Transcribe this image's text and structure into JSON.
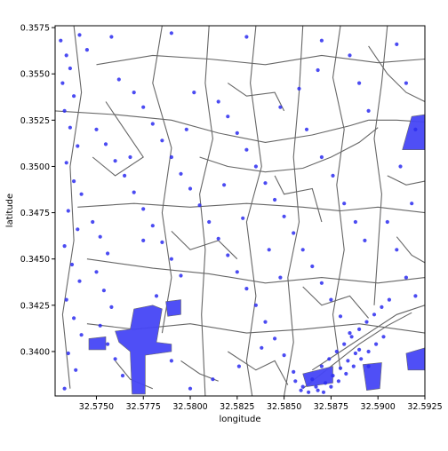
{
  "chart_data": {
    "type": "scatter",
    "xlabel": "longitude",
    "ylabel": "latitude",
    "xlim": [
      32.5728,
      32.5925
    ],
    "ylim": [
      0.3376,
      0.3576
    ],
    "x_ticks": [
      32.575,
      32.5775,
      32.58,
      32.5825,
      32.585,
      32.5875,
      32.59,
      32.5925
    ],
    "x_tick_labels": [
      "32.5750",
      "32.5775",
      "32.5800",
      "32.5825",
      "32.5850",
      "32.5875",
      "32.5900",
      "32.5925"
    ],
    "y_ticks": [
      0.34,
      0.3425,
      0.345,
      0.3475,
      0.35,
      0.3525,
      0.355,
      0.3575
    ],
    "y_tick_labels": [
      "0.3400",
      "0.3425",
      "0.3450",
      "0.3475",
      "0.3500",
      "0.3525",
      "0.3550",
      "0.3575"
    ],
    "grid": false,
    "colors": {
      "points": "#2b2bf0",
      "water": "#4646f5",
      "roads": "#666666",
      "frame": "#000000"
    },
    "layers": [
      {
        "role": "roads",
        "geometry": "line",
        "color": "#666666"
      },
      {
        "role": "points",
        "geometry": "scatter",
        "color": "#2b2bf0"
      },
      {
        "role": "water",
        "geometry": "polygon",
        "color": "#4646f5"
      }
    ],
    "roads": [
      [
        [
          32.5728,
          0.353
        ],
        [
          32.576,
          0.3528
        ],
        [
          32.579,
          0.3525
        ],
        [
          32.5815,
          0.3518
        ],
        [
          32.584,
          0.3513
        ],
        [
          32.5865,
          0.3517
        ],
        [
          32.5885,
          0.3522
        ],
        [
          32.5895,
          0.3525
        ]
      ],
      [
        [
          32.5895,
          0.3525
        ],
        [
          32.591,
          0.3525
        ],
        [
          32.5925,
          0.3524
        ]
      ],
      [
        [
          32.5805,
          0.3505
        ],
        [
          32.582,
          0.35
        ],
        [
          32.584,
          0.3497
        ],
        [
          32.586,
          0.3499
        ],
        [
          32.5875,
          0.3505
        ],
        [
          32.589,
          0.3513
        ],
        [
          32.59,
          0.3521
        ]
      ],
      [
        [
          32.5738,
          0.3576
        ],
        [
          32.5742,
          0.354
        ],
        [
          32.5736,
          0.35
        ],
        [
          32.5738,
          0.346
        ],
        [
          32.5732,
          0.342
        ],
        [
          32.5736,
          0.338
        ]
      ],
      [
        [
          32.574,
          0.3478
        ],
        [
          32.577,
          0.348
        ],
        [
          32.58,
          0.3478
        ],
        [
          32.583,
          0.348
        ],
        [
          32.586,
          0.3478
        ],
        [
          32.588,
          0.3476
        ],
        [
          32.59,
          0.3478
        ],
        [
          32.5925,
          0.3475
        ]
      ],
      [
        [
          32.581,
          0.3576
        ],
        [
          32.5808,
          0.3545
        ],
        [
          32.5812,
          0.3515
        ],
        [
          32.5805,
          0.3485
        ],
        [
          32.5808,
          0.3455
        ],
        [
          32.5806,
          0.342
        ],
        [
          32.5808,
          0.3376
        ]
      ],
      [
        [
          32.586,
          0.3576
        ],
        [
          32.5858,
          0.354
        ],
        [
          32.5855,
          0.3505
        ],
        [
          32.5858,
          0.347
        ],
        [
          32.5852,
          0.344
        ],
        [
          32.5855,
          0.3405
        ],
        [
          32.585,
          0.3376
        ]
      ],
      [
        [
          32.5905,
          0.3576
        ],
        [
          32.5902,
          0.3545
        ],
        [
          32.5898,
          0.3515
        ],
        [
          32.5902,
          0.3485
        ],
        [
          32.59,
          0.3455
        ],
        [
          32.5898,
          0.3425
        ]
      ],
      [
        [
          32.5745,
          0.345
        ],
        [
          32.578,
          0.3445
        ],
        [
          32.581,
          0.3442
        ],
        [
          32.584,
          0.3437
        ],
        [
          32.587,
          0.344
        ],
        [
          32.59,
          0.3437
        ],
        [
          32.5925,
          0.344
        ]
      ],
      [
        [
          32.575,
          0.3555
        ],
        [
          32.578,
          0.356
        ],
        [
          32.581,
          0.3558
        ],
        [
          32.584,
          0.3555
        ],
        [
          32.587,
          0.356
        ],
        [
          32.59,
          0.3556
        ],
        [
          32.5925,
          0.3558
        ]
      ],
      [
        [
          32.5785,
          0.3576
        ],
        [
          32.578,
          0.3545
        ],
        [
          32.579,
          0.351
        ],
        [
          32.5785,
          0.3475
        ],
        [
          32.579,
          0.344
        ],
        [
          32.5785,
          0.341
        ]
      ],
      [
        [
          32.5835,
          0.3576
        ],
        [
          32.5832,
          0.3545
        ],
        [
          32.5838,
          0.35
        ],
        [
          32.583,
          0.347
        ],
        [
          32.5835,
          0.343
        ],
        [
          32.583,
          0.3395
        ],
        [
          32.5833,
          0.3376
        ]
      ],
      [
        [
          32.588,
          0.3576
        ],
        [
          32.5876,
          0.3548
        ],
        [
          32.5882,
          0.352
        ],
        [
          32.5878,
          0.349
        ],
        [
          32.5882,
          0.3455
        ],
        [
          32.5876,
          0.342
        ],
        [
          32.588,
          0.339
        ]
      ],
      [
        [
          32.5745,
          0.3415
        ],
        [
          32.577,
          0.3412
        ],
        [
          32.58,
          0.3415
        ],
        [
          32.583,
          0.341
        ],
        [
          32.586,
          0.3412
        ],
        [
          32.589,
          0.3415
        ],
        [
          32.5925,
          0.341
        ]
      ],
      [
        [
          32.5755,
          0.3535
        ],
        [
          32.5765,
          0.352
        ],
        [
          32.5775,
          0.3505
        ],
        [
          32.576,
          0.3495
        ],
        [
          32.5748,
          0.3505
        ]
      ],
      [
        [
          32.582,
          0.3545
        ],
        [
          32.583,
          0.3538
        ],
        [
          32.5845,
          0.354
        ],
        [
          32.585,
          0.353
        ]
      ],
      [
        [
          32.5845,
          0.3495
        ],
        [
          32.585,
          0.3485
        ],
        [
          32.5865,
          0.3488
        ],
        [
          32.587,
          0.347
        ]
      ],
      [
        [
          32.579,
          0.3465
        ],
        [
          32.58,
          0.3455
        ],
        [
          32.5815,
          0.346
        ],
        [
          32.5825,
          0.345
        ]
      ],
      [
        [
          32.586,
          0.3435
        ],
        [
          32.587,
          0.3425
        ],
        [
          32.5885,
          0.343
        ],
        [
          32.5895,
          0.3418
        ]
      ],
      [
        [
          32.582,
          0.34
        ],
        [
          32.5835,
          0.339
        ],
        [
          32.5845,
          0.3395
        ],
        [
          32.5852,
          0.3382
        ]
      ],
      [
        [
          32.5865,
          0.339
        ],
        [
          32.588,
          0.34
        ],
        [
          32.5895,
          0.341
        ],
        [
          32.591,
          0.342
        ],
        [
          32.5925,
          0.3425
        ]
      ],
      [
        [
          32.586,
          0.338
        ],
        [
          32.5875,
          0.3392
        ],
        [
          32.589,
          0.3404
        ],
        [
          32.5905,
          0.3414
        ],
        [
          32.5918,
          0.3421
        ]
      ],
      [
        [
          32.5895,
          0.3565
        ],
        [
          32.5905,
          0.355
        ],
        [
          32.5915,
          0.354
        ],
        [
          32.5925,
          0.3535
        ]
      ],
      [
        [
          32.5905,
          0.3495
        ],
        [
          32.5915,
          0.349
        ],
        [
          32.5925,
          0.3492
        ]
      ],
      [
        [
          32.591,
          0.3462
        ],
        [
          32.5918,
          0.3452
        ],
        [
          32.5925,
          0.3448
        ]
      ],
      [
        [
          32.576,
          0.3395
        ],
        [
          32.5768,
          0.3385
        ],
        [
          32.578,
          0.338
        ]
      ],
      [
        [
          32.5795,
          0.3395
        ],
        [
          32.5805,
          0.3388
        ],
        [
          32.5815,
          0.3384
        ]
      ]
    ],
    "water_polygons": [
      [
        [
          32.577,
          0.3423
        ],
        [
          32.578,
          0.3425
        ],
        [
          32.5785,
          0.3423
        ],
        [
          32.5782,
          0.3405
        ],
        [
          32.579,
          0.3404
        ],
        [
          32.579,
          0.34
        ],
        [
          32.5776,
          0.3398
        ],
        [
          32.5776,
          0.3377
        ],
        [
          32.5769,
          0.3377
        ],
        [
          32.5768,
          0.34
        ],
        [
          32.5762,
          0.3405
        ],
        [
          32.576,
          0.3411
        ],
        [
          32.5768,
          0.3412
        ]
      ],
      [
        [
          32.5787,
          0.3427
        ],
        [
          32.5795,
          0.3428
        ],
        [
          32.5795,
          0.342
        ],
        [
          32.5788,
          0.3419
        ]
      ],
      [
        [
          32.5746,
          0.3407
        ],
        [
          32.5755,
          0.3408
        ],
        [
          32.5755,
          0.3401
        ],
        [
          32.5746,
          0.3401
        ]
      ],
      [
        [
          32.5918,
          0.3527
        ],
        [
          32.5925,
          0.3528
        ],
        [
          32.5925,
          0.3509
        ],
        [
          32.5913,
          0.3509
        ]
      ],
      [
        [
          32.5915,
          0.3399
        ],
        [
          32.5925,
          0.3402
        ],
        [
          32.5925,
          0.339
        ],
        [
          32.5916,
          0.339
        ]
      ],
      [
        [
          32.5892,
          0.3393
        ],
        [
          32.5902,
          0.3394
        ],
        [
          32.5901,
          0.338
        ],
        [
          32.5894,
          0.3379
        ]
      ],
      [
        [
          32.586,
          0.3388
        ],
        [
          32.5876,
          0.3392
        ],
        [
          32.5876,
          0.3383
        ],
        [
          32.5862,
          0.3381
        ]
      ]
    ],
    "points": [
      [
        32.5731,
        0.3568
      ],
      [
        32.5734,
        0.356
      ],
      [
        32.5736,
        0.3553
      ],
      [
        32.5732,
        0.3545
      ],
      [
        32.5738,
        0.3538
      ],
      [
        32.5741,
        0.3571
      ],
      [
        32.5745,
        0.3563
      ],
      [
        32.5733,
        0.353
      ],
      [
        32.5736,
        0.3521
      ],
      [
        32.574,
        0.3511
      ],
      [
        32.5734,
        0.3502
      ],
      [
        32.5738,
        0.3492
      ],
      [
        32.5742,
        0.3485
      ],
      [
        32.5735,
        0.3476
      ],
      [
        32.574,
        0.3466
      ],
      [
        32.5733,
        0.3457
      ],
      [
        32.5737,
        0.3447
      ],
      [
        32.5741,
        0.3438
      ],
      [
        32.5734,
        0.3428
      ],
      [
        32.5738,
        0.3418
      ],
      [
        32.5742,
        0.3409
      ],
      [
        32.5735,
        0.3399
      ],
      [
        32.5739,
        0.339
      ],
      [
        32.5733,
        0.338
      ],
      [
        32.5748,
        0.347
      ],
      [
        32.5752,
        0.3462
      ],
      [
        32.5756,
        0.3453
      ],
      [
        32.575,
        0.3443
      ],
      [
        32.5754,
        0.3433
      ],
      [
        32.5758,
        0.3424
      ],
      [
        32.5752,
        0.3414
      ],
      [
        32.5756,
        0.3404
      ],
      [
        32.576,
        0.3396
      ],
      [
        32.5764,
        0.3387
      ],
      [
        32.575,
        0.352
      ],
      [
        32.5755,
        0.3512
      ],
      [
        32.576,
        0.3503
      ],
      [
        32.5765,
        0.3495
      ],
      [
        32.577,
        0.3486
      ],
      [
        32.5775,
        0.3477
      ],
      [
        32.578,
        0.3468
      ],
      [
        32.5785,
        0.3459
      ],
      [
        32.579,
        0.345
      ],
      [
        32.5795,
        0.3441
      ],
      [
        32.577,
        0.354
      ],
      [
        32.5775,
        0.3532
      ],
      [
        32.578,
        0.3523
      ],
      [
        32.5785,
        0.3514
      ],
      [
        32.579,
        0.3505
      ],
      [
        32.5795,
        0.3496
      ],
      [
        32.58,
        0.3488
      ],
      [
        32.5805,
        0.3479
      ],
      [
        32.581,
        0.347
      ],
      [
        32.5815,
        0.3461
      ],
      [
        32.582,
        0.3452
      ],
      [
        32.5825,
        0.3443
      ],
      [
        32.583,
        0.3434
      ],
      [
        32.5835,
        0.3425
      ],
      [
        32.584,
        0.3416
      ],
      [
        32.5845,
        0.3407
      ],
      [
        32.585,
        0.3398
      ],
      [
        32.5855,
        0.3389
      ],
      [
        32.586,
        0.3381
      ],
      [
        32.5815,
        0.3535
      ],
      [
        32.582,
        0.3527
      ],
      [
        32.5825,
        0.3518
      ],
      [
        32.583,
        0.3509
      ],
      [
        32.5835,
        0.35
      ],
      [
        32.584,
        0.3491
      ],
      [
        32.5845,
        0.3482
      ],
      [
        32.585,
        0.3473
      ],
      [
        32.5855,
        0.3464
      ],
      [
        32.586,
        0.3455
      ],
      [
        32.5865,
        0.3446
      ],
      [
        32.587,
        0.3437
      ],
      [
        32.5875,
        0.3428
      ],
      [
        32.588,
        0.3419
      ],
      [
        32.5885,
        0.341
      ],
      [
        32.589,
        0.3401
      ],
      [
        32.5895,
        0.3392
      ],
      [
        32.5865,
        0.3385
      ],
      [
        32.5868,
        0.3379
      ],
      [
        32.5872,
        0.3383
      ],
      [
        32.5876,
        0.3387
      ],
      [
        32.588,
        0.3391
      ],
      [
        32.5884,
        0.3395
      ],
      [
        32.5888,
        0.3399
      ],
      [
        32.587,
        0.3392
      ],
      [
        32.5874,
        0.3396
      ],
      [
        32.5878,
        0.34
      ],
      [
        32.5882,
        0.3404
      ],
      [
        32.5886,
        0.3408
      ],
      [
        32.589,
        0.3412
      ],
      [
        32.5894,
        0.3416
      ],
      [
        32.5898,
        0.342
      ],
      [
        32.5902,
        0.3424
      ],
      [
        32.5906,
        0.3428
      ],
      [
        32.5856,
        0.3384
      ],
      [
        32.5859,
        0.3379
      ],
      [
        32.5863,
        0.3378
      ],
      [
        32.5867,
        0.3381
      ],
      [
        32.5871,
        0.3378
      ],
      [
        32.5875,
        0.3381
      ],
      [
        32.5879,
        0.3384
      ],
      [
        32.5883,
        0.3388
      ],
      [
        32.5887,
        0.3392
      ],
      [
        32.5891,
        0.3396
      ],
      [
        32.5895,
        0.34
      ],
      [
        32.5899,
        0.3404
      ],
      [
        32.5903,
        0.3408
      ],
      [
        32.5758,
        0.357
      ],
      [
        32.579,
        0.3572
      ],
      [
        32.583,
        0.357
      ],
      [
        32.587,
        0.3568
      ],
      [
        32.5885,
        0.356
      ],
      [
        32.589,
        0.3545
      ],
      [
        32.5895,
        0.353
      ],
      [
        32.5868,
        0.3552
      ],
      [
        32.5858,
        0.3542
      ],
      [
        32.5848,
        0.3532
      ],
      [
        32.591,
        0.3566
      ],
      [
        32.5915,
        0.3545
      ],
      [
        32.592,
        0.352
      ],
      [
        32.5912,
        0.35
      ],
      [
        32.5918,
        0.348
      ],
      [
        32.591,
        0.3455
      ],
      [
        32.5915,
        0.344
      ],
      [
        32.592,
        0.343
      ],
      [
        32.5905,
        0.347
      ],
      [
        32.5893,
        0.346
      ],
      [
        32.5762,
        0.3547
      ],
      [
        32.5768,
        0.3505
      ],
      [
        32.5775,
        0.346
      ],
      [
        32.5782,
        0.343
      ],
      [
        32.5798,
        0.352
      ],
      [
        32.5802,
        0.354
      ],
      [
        32.5818,
        0.349
      ],
      [
        32.5828,
        0.3472
      ],
      [
        32.5842,
        0.3455
      ],
      [
        32.5848,
        0.344
      ],
      [
        32.5838,
        0.3402
      ],
      [
        32.5826,
        0.3392
      ],
      [
        32.5812,
        0.3385
      ],
      [
        32.58,
        0.338
      ],
      [
        32.579,
        0.3395
      ],
      [
        32.5862,
        0.352
      ],
      [
        32.587,
        0.3505
      ],
      [
        32.5876,
        0.3495
      ],
      [
        32.5882,
        0.348
      ],
      [
        32.5888,
        0.347
      ]
    ]
  }
}
